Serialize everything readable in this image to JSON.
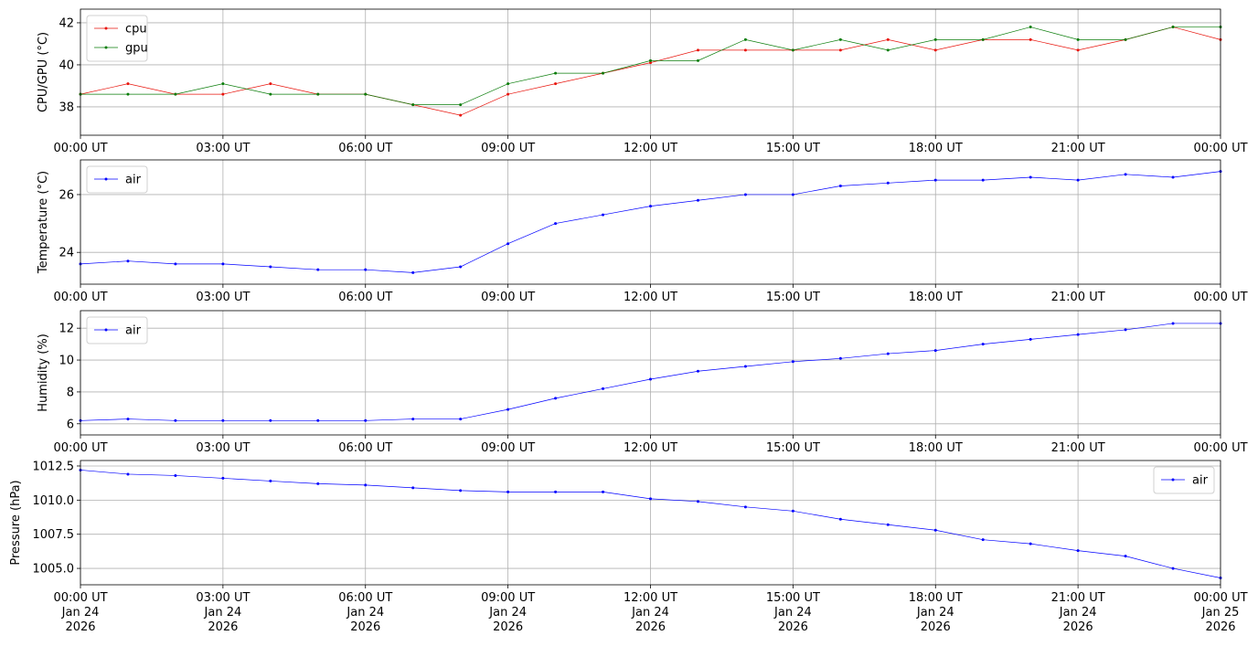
{
  "chart_data": [
    {
      "type": "line",
      "ylabel": "CPU/GPU (°C)",
      "legend": "upper left",
      "grid": true,
      "x": [
        "2026-01-24 00:00",
        "2026-01-24 01:00",
        "2026-01-24 02:00",
        "2026-01-24 03:00",
        "2026-01-24 04:00",
        "2026-01-24 05:00",
        "2026-01-24 06:00",
        "2026-01-24 07:00",
        "2026-01-24 08:00",
        "2026-01-24 09:00",
        "2026-01-24 10:00",
        "2026-01-24 11:00",
        "2026-01-24 12:00",
        "2026-01-24 13:00",
        "2026-01-24 14:00",
        "2026-01-24 15:00",
        "2026-01-24 16:00",
        "2026-01-24 17:00",
        "2026-01-24 18:00",
        "2026-01-24 19:00",
        "2026-01-24 20:00",
        "2026-01-24 21:00",
        "2026-01-24 22:00",
        "2026-01-24 23:00",
        "2026-01-25 00:00"
      ],
      "series": [
        {
          "name": "cpu",
          "color": "#e8140c",
          "values": [
            38.6,
            39.1,
            38.6,
            38.6,
            39.1,
            38.6,
            38.6,
            38.1,
            37.6,
            38.6,
            39.1,
            39.6,
            40.1,
            40.7,
            40.7,
            40.7,
            40.7,
            41.2,
            40.7,
            41.2,
            41.2,
            40.7,
            41.2,
            41.8,
            41.2
          ]
        },
        {
          "name": "gpu",
          "color": "#0a7d0a",
          "values": [
            38.6,
            38.6,
            38.6,
            39.1,
            38.6,
            38.6,
            38.6,
            38.1,
            38.1,
            39.1,
            39.6,
            39.6,
            40.2,
            40.2,
            41.2,
            40.7,
            41.2,
            40.7,
            41.2,
            41.2,
            41.8,
            41.2,
            41.2,
            41.8,
            41.8
          ]
        }
      ],
      "xlim": [
        "2026-01-24 00:00",
        "2026-01-25 00:00"
      ],
      "xticks": [
        {
          "value": "2026-01-24 00:00",
          "label": "00:00 UT"
        },
        {
          "value": "2026-01-24 03:00",
          "label": "03:00 UT"
        },
        {
          "value": "2026-01-24 06:00",
          "label": "06:00 UT"
        },
        {
          "value": "2026-01-24 09:00",
          "label": "09:00 UT"
        },
        {
          "value": "2026-01-24 12:00",
          "label": "12:00 UT"
        },
        {
          "value": "2026-01-24 15:00",
          "label": "15:00 UT"
        },
        {
          "value": "2026-01-24 18:00",
          "label": "18:00 UT"
        },
        {
          "value": "2026-01-24 21:00",
          "label": "21:00 UT"
        },
        {
          "value": "2026-01-25 00:00",
          "label": "00:00 UT"
        }
      ],
      "ylim": [
        36.65,
        42.65
      ],
      "yticks": [
        38,
        40,
        42
      ]
    },
    {
      "type": "line",
      "ylabel": "Temperature (°C)",
      "legend": "upper left",
      "grid": true,
      "x": [
        "2026-01-24 00:00",
        "2026-01-24 01:00",
        "2026-01-24 02:00",
        "2026-01-24 03:00",
        "2026-01-24 04:00",
        "2026-01-24 05:00",
        "2026-01-24 06:00",
        "2026-01-24 07:00",
        "2026-01-24 08:00",
        "2026-01-24 09:00",
        "2026-01-24 10:00",
        "2026-01-24 11:00",
        "2026-01-24 12:00",
        "2026-01-24 13:00",
        "2026-01-24 14:00",
        "2026-01-24 15:00",
        "2026-01-24 16:00",
        "2026-01-24 17:00",
        "2026-01-24 18:00",
        "2026-01-24 19:00",
        "2026-01-24 20:00",
        "2026-01-24 21:00",
        "2026-01-24 22:00",
        "2026-01-24 23:00",
        "2026-01-25 00:00"
      ],
      "series": [
        {
          "name": "air",
          "color": "#0000ff",
          "values": [
            23.6,
            23.7,
            23.6,
            23.6,
            23.5,
            23.4,
            23.4,
            23.3,
            23.5,
            24.3,
            25.0,
            25.3,
            25.6,
            25.8,
            26.0,
            26.0,
            26.3,
            26.4,
            26.5,
            26.5,
            26.6,
            26.5,
            26.7,
            26.6,
            26.8
          ]
        }
      ],
      "xlim": [
        "2026-01-24 00:00",
        "2026-01-25 00:00"
      ],
      "xticks": [
        {
          "value": "2026-01-24 00:00",
          "label": "00:00 UT"
        },
        {
          "value": "2026-01-24 03:00",
          "label": "03:00 UT"
        },
        {
          "value": "2026-01-24 06:00",
          "label": "06:00 UT"
        },
        {
          "value": "2026-01-24 09:00",
          "label": "09:00 UT"
        },
        {
          "value": "2026-01-24 12:00",
          "label": "12:00 UT"
        },
        {
          "value": "2026-01-24 15:00",
          "label": "15:00 UT"
        },
        {
          "value": "2026-01-24 18:00",
          "label": "18:00 UT"
        },
        {
          "value": "2026-01-24 21:00",
          "label": "21:00 UT"
        },
        {
          "value": "2026-01-25 00:00",
          "label": "00:00 UT"
        }
      ],
      "ylim": [
        22.9,
        27.2
      ],
      "yticks": [
        24,
        26
      ]
    },
    {
      "type": "line",
      "ylabel": "Humidity (%)",
      "legend": "upper left",
      "grid": true,
      "x": [
        "2026-01-24 00:00",
        "2026-01-24 01:00",
        "2026-01-24 02:00",
        "2026-01-24 03:00",
        "2026-01-24 04:00",
        "2026-01-24 05:00",
        "2026-01-24 06:00",
        "2026-01-24 07:00",
        "2026-01-24 08:00",
        "2026-01-24 09:00",
        "2026-01-24 10:00",
        "2026-01-24 11:00",
        "2026-01-24 12:00",
        "2026-01-24 13:00",
        "2026-01-24 14:00",
        "2026-01-24 15:00",
        "2026-01-24 16:00",
        "2026-01-24 17:00",
        "2026-01-24 18:00",
        "2026-01-24 19:00",
        "2026-01-24 20:00",
        "2026-01-24 21:00",
        "2026-01-24 22:00",
        "2026-01-24 23:00",
        "2026-01-25 00:00"
      ],
      "series": [
        {
          "name": "air",
          "color": "#0000ff",
          "values": [
            6.2,
            6.3,
            6.2,
            6.2,
            6.2,
            6.2,
            6.2,
            6.3,
            6.3,
            6.9,
            7.6,
            8.2,
            8.8,
            9.3,
            9.6,
            9.9,
            10.1,
            10.4,
            10.6,
            11.0,
            11.3,
            11.6,
            11.9,
            12.3,
            12.3
          ]
        }
      ],
      "xlim": [
        "2026-01-24 00:00",
        "2026-01-25 00:00"
      ],
      "xticks": [
        {
          "value": "2026-01-24 00:00",
          "label": "00:00 UT"
        },
        {
          "value": "2026-01-24 03:00",
          "label": "03:00 UT"
        },
        {
          "value": "2026-01-24 06:00",
          "label": "06:00 UT"
        },
        {
          "value": "2026-01-24 09:00",
          "label": "09:00 UT"
        },
        {
          "value": "2026-01-24 12:00",
          "label": "12:00 UT"
        },
        {
          "value": "2026-01-24 15:00",
          "label": "15:00 UT"
        },
        {
          "value": "2026-01-24 18:00",
          "label": "18:00 UT"
        },
        {
          "value": "2026-01-24 21:00",
          "label": "21:00 UT"
        },
        {
          "value": "2026-01-25 00:00",
          "label": "00:00 UT"
        }
      ],
      "ylim": [
        5.3,
        13.1
      ],
      "yticks": [
        6,
        8,
        10,
        12
      ]
    },
    {
      "type": "line",
      "ylabel": "Pressure (hPa)",
      "legend": "upper right",
      "grid": true,
      "x": [
        "2026-01-24 00:00",
        "2026-01-24 01:00",
        "2026-01-24 02:00",
        "2026-01-24 03:00",
        "2026-01-24 04:00",
        "2026-01-24 05:00",
        "2026-01-24 06:00",
        "2026-01-24 07:00",
        "2026-01-24 08:00",
        "2026-01-24 09:00",
        "2026-01-24 10:00",
        "2026-01-24 11:00",
        "2026-01-24 12:00",
        "2026-01-24 13:00",
        "2026-01-24 14:00",
        "2026-01-24 15:00",
        "2026-01-24 16:00",
        "2026-01-24 17:00",
        "2026-01-24 18:00",
        "2026-01-24 19:00",
        "2026-01-24 20:00",
        "2026-01-24 21:00",
        "2026-01-24 22:00",
        "2026-01-24 23:00",
        "2026-01-25 00:00"
      ],
      "series": [
        {
          "name": "air",
          "color": "#0000ff",
          "values": [
            1012.2,
            1011.9,
            1011.8,
            1011.6,
            1011.4,
            1011.2,
            1011.1,
            1010.9,
            1010.7,
            1010.6,
            1010.6,
            1010.6,
            1010.1,
            1009.9,
            1009.5,
            1009.2,
            1008.6,
            1008.2,
            1007.8,
            1007.1,
            1006.8,
            1006.3,
            1005.9,
            1005.0,
            1004.3
          ]
        }
      ],
      "xlim": [
        "2026-01-24 00:00",
        "2026-01-25 00:00"
      ],
      "xticks": [
        {
          "value": "2026-01-24 00:00",
          "label": [
            "00:00 UT",
            "Jan 24",
            "2026"
          ]
        },
        {
          "value": "2026-01-24 03:00",
          "label": [
            "03:00 UT",
            "Jan 24",
            "2026"
          ]
        },
        {
          "value": "2026-01-24 06:00",
          "label": [
            "06:00 UT",
            "Jan 24",
            "2026"
          ]
        },
        {
          "value": "2026-01-24 09:00",
          "label": [
            "09:00 UT",
            "Jan 24",
            "2026"
          ]
        },
        {
          "value": "2026-01-24 12:00",
          "label": [
            "12:00 UT",
            "Jan 24",
            "2026"
          ]
        },
        {
          "value": "2026-01-24 15:00",
          "label": [
            "15:00 UT",
            "Jan 24",
            "2026"
          ]
        },
        {
          "value": "2026-01-24 18:00",
          "label": [
            "18:00 UT",
            "Jan 24",
            "2026"
          ]
        },
        {
          "value": "2026-01-24 21:00",
          "label": [
            "21:00 UT",
            "Jan 24",
            "2026"
          ]
        },
        {
          "value": "2026-01-25 00:00",
          "label": [
            "00:00 UT",
            "Jan 25",
            "2026"
          ]
        }
      ],
      "ylim": [
        1003.8,
        1012.9
      ],
      "yticks": [
        {
          "value": 1005,
          "label": "1005.0"
        },
        {
          "value": 1007.5,
          "label": "1007.5"
        },
        {
          "value": 1010,
          "label": "1010.0"
        },
        {
          "value": 1012.5,
          "label": "1012.5"
        }
      ]
    }
  ]
}
